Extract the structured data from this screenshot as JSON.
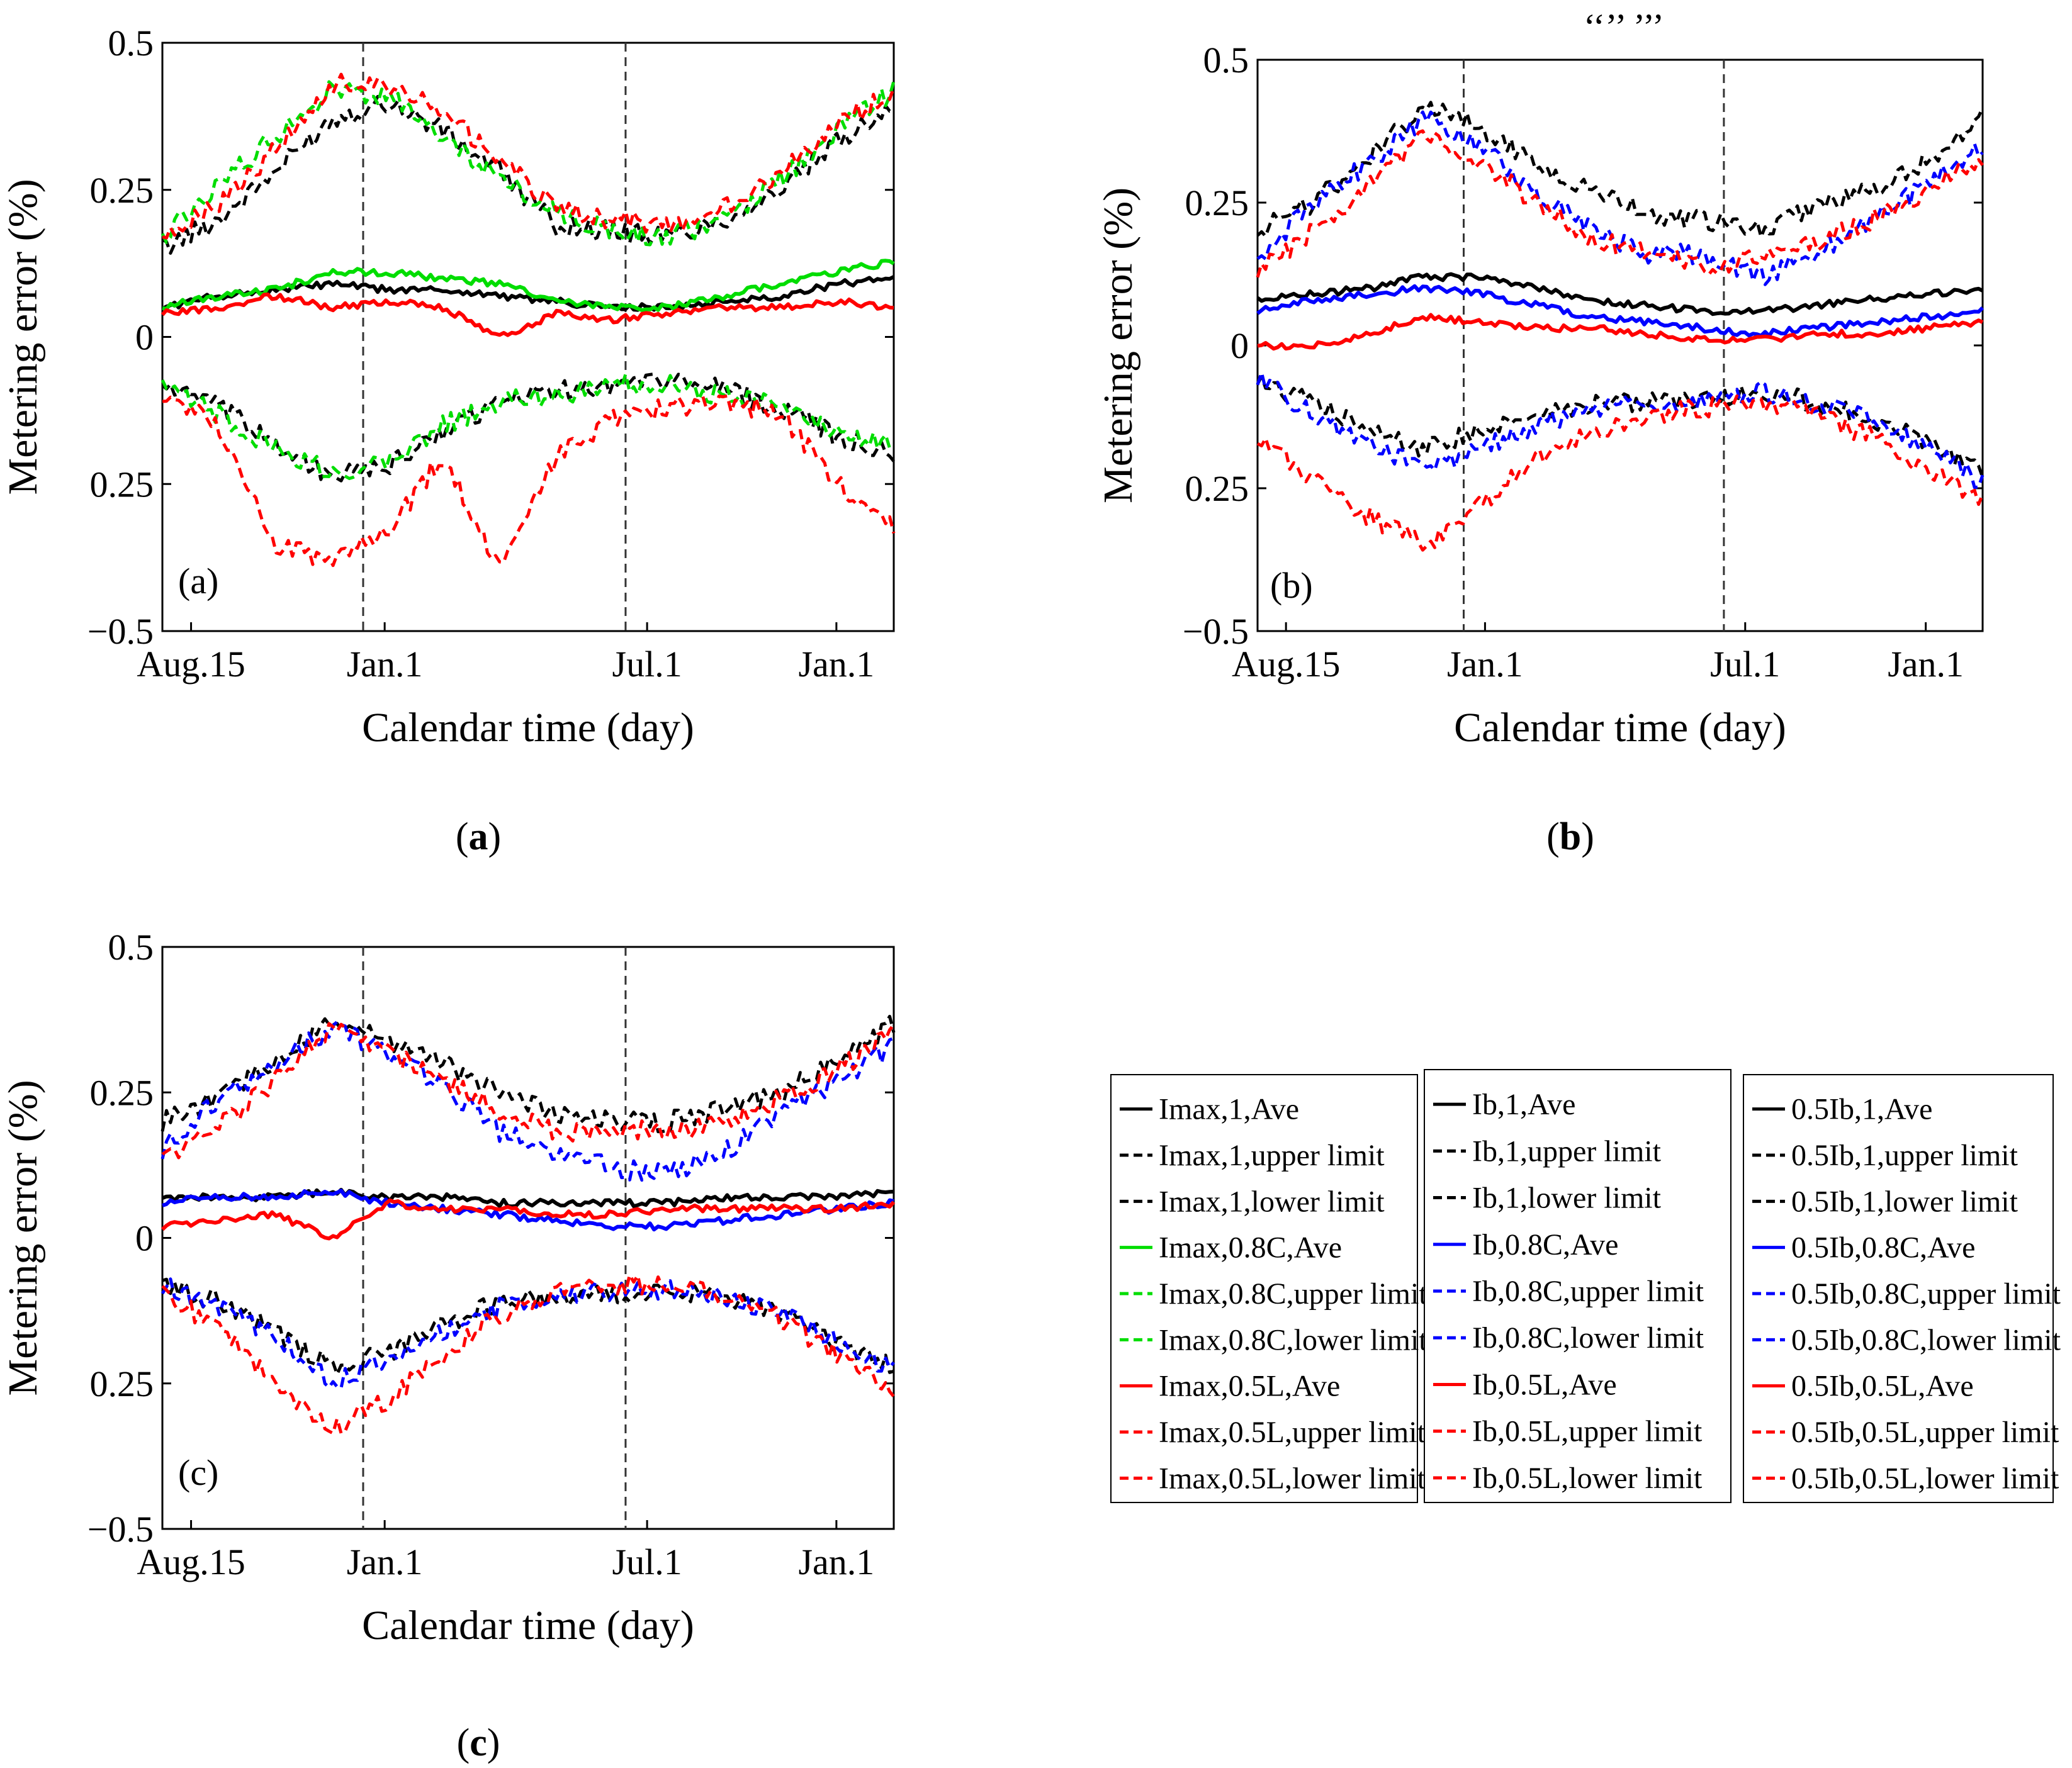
{
  "figure": {
    "captions": [
      "a",
      "b",
      "c"
    ],
    "caption_format": "(X)"
  },
  "chart_data": [
    {
      "type": "line",
      "panel_label": "(a)",
      "xlabel": "Calendar time  (day)",
      "ylabel": "Metering error (%)",
      "xticks": [
        "Aug.15",
        "Jan.1",
        "Jul.1",
        "Jan.1"
      ],
      "yticks": [
        "0.5",
        "0.25",
        "0",
        "0.25",
        "−0.5"
      ],
      "ylim": [
        -0.5,
        0.5
      ],
      "xlim": [
        0,
        510
      ],
      "vlines_x": [
        140,
        323
      ],
      "series": [
        {
          "name": "Imax,1,upper limit",
          "color": "#000000",
          "dash": true,
          "values": [
            0.15,
            0.2,
            0.28,
            0.37,
            0.4,
            0.35,
            0.28,
            0.19,
            0.18,
            0.17,
            0.2,
            0.25,
            0.33,
            0.4
          ]
        },
        {
          "name": "Imax,1,Ave",
          "color": "#000000",
          "dash": false,
          "values": [
            0.05,
            0.07,
            0.08,
            0.09,
            0.08,
            0.08,
            0.07,
            0.06,
            0.05,
            0.05,
            0.06,
            0.07,
            0.09,
            0.1
          ]
        },
        {
          "name": "Imax,1,lower limit",
          "color": "#000000",
          "dash": true,
          "values": [
            -0.08,
            -0.12,
            -0.18,
            -0.24,
            -0.22,
            -0.16,
            -0.11,
            -0.09,
            -0.08,
            -0.07,
            -0.09,
            -0.12,
            -0.17,
            -0.2
          ]
        },
        {
          "name": "Imax,0.8C,upper limit",
          "color": "#00dd00",
          "dash": true,
          "values": [
            0.17,
            0.26,
            0.34,
            0.42,
            0.41,
            0.34,
            0.27,
            0.21,
            0.18,
            0.17,
            0.2,
            0.27,
            0.35,
            0.42
          ]
        },
        {
          "name": "Imax,0.8C,Ave",
          "color": "#00dd00",
          "dash": false,
          "values": [
            0.05,
            0.07,
            0.08,
            0.11,
            0.11,
            0.1,
            0.09,
            0.06,
            0.05,
            0.05,
            0.07,
            0.09,
            0.11,
            0.13
          ]
        },
        {
          "name": "Imax,0.8C,lower limit",
          "color": "#00dd00",
          "dash": true,
          "values": [
            -0.09,
            -0.13,
            -0.19,
            -0.23,
            -0.21,
            -0.15,
            -0.11,
            -0.1,
            -0.08,
            -0.08,
            -0.1,
            -0.12,
            -0.16,
            -0.18
          ]
        },
        {
          "name": "Imax,0.5L,upper limit",
          "color": "#ff0000",
          "dash": true,
          "values": [
            0.18,
            0.22,
            0.32,
            0.43,
            0.43,
            0.38,
            0.3,
            0.22,
            0.2,
            0.19,
            0.22,
            0.28,
            0.36,
            0.42
          ]
        },
        {
          "name": "Imax,0.5L,Ave",
          "color": "#ff0000",
          "dash": false,
          "values": [
            0.04,
            0.05,
            0.07,
            0.05,
            0.06,
            0.05,
            0.0,
            0.04,
            0.03,
            0.04,
            0.05,
            0.05,
            0.06,
            0.05
          ]
        },
        {
          "name": "Imax,0.5L,lower limit",
          "color": "#ff0000",
          "dash": true,
          "values": [
            -0.1,
            -0.15,
            -0.35,
            -0.38,
            -0.33,
            -0.2,
            -0.4,
            -0.2,
            -0.14,
            -0.12,
            -0.11,
            -0.13,
            -0.25,
            -0.32
          ]
        }
      ]
    },
    {
      "type": "line",
      "panel_label": "(b)",
      "title": "‘‘’’ ’’’",
      "xlabel": "Calendar time  (day)",
      "ylabel": "Metering error (%)",
      "xticks": [
        "Aug.15",
        "Jan.1",
        "Jul.1",
        "Jan.1"
      ],
      "yticks": [
        "0.5",
        "0.25",
        "0",
        "0.25",
        "−0.5"
      ],
      "ylim": [
        -0.5,
        0.5
      ],
      "xlim": [
        0,
        510
      ],
      "vlines_x": [
        145,
        328
      ],
      "series": [
        {
          "name": "Ib,1,upper limit",
          "color": "#000000",
          "dash": true,
          "values": [
            0.2,
            0.25,
            0.33,
            0.42,
            0.38,
            0.32,
            0.27,
            0.23,
            0.22,
            0.2,
            0.24,
            0.27,
            0.32,
            0.4
          ]
        },
        {
          "name": "Ib,1,Ave",
          "color": "#000000",
          "dash": false,
          "values": [
            0.08,
            0.09,
            0.1,
            0.12,
            0.12,
            0.1,
            0.08,
            0.07,
            0.06,
            0.06,
            0.07,
            0.08,
            0.09,
            0.1
          ]
        },
        {
          "name": "Ib,1,lower limit",
          "color": "#000000",
          "dash": true,
          "values": [
            -0.06,
            -0.1,
            -0.15,
            -0.18,
            -0.15,
            -0.12,
            -0.1,
            -0.1,
            -0.1,
            -0.08,
            -0.1,
            -0.13,
            -0.17,
            -0.22
          ]
        },
        {
          "name": "Ib,0.8C,upper limit",
          "color": "#0000ff",
          "dash": true,
          "values": [
            0.15,
            0.25,
            0.32,
            0.4,
            0.35,
            0.27,
            0.2,
            0.16,
            0.16,
            0.12,
            0.16,
            0.22,
            0.28,
            0.35
          ]
        },
        {
          "name": "Ib,0.8C,Ave",
          "color": "#0000ff",
          "dash": false,
          "values": [
            0.06,
            0.08,
            0.09,
            0.1,
            0.09,
            0.07,
            0.05,
            0.04,
            0.03,
            0.02,
            0.03,
            0.04,
            0.05,
            0.06
          ]
        },
        {
          "name": "Ib,0.8C,lower limit",
          "color": "#0000ff",
          "dash": true,
          "values": [
            -0.06,
            -0.12,
            -0.17,
            -0.22,
            -0.18,
            -0.14,
            -0.11,
            -0.1,
            -0.1,
            -0.08,
            -0.1,
            -0.13,
            -0.18,
            -0.24
          ]
        },
        {
          "name": "Ib,0.5L,upper limit",
          "color": "#ff0000",
          "dash": true,
          "values": [
            0.13,
            0.2,
            0.28,
            0.37,
            0.32,
            0.25,
            0.19,
            0.16,
            0.14,
            0.15,
            0.18,
            0.22,
            0.27,
            0.33
          ]
        },
        {
          "name": "Ib,0.5L,Ave",
          "color": "#ff0000",
          "dash": false,
          "values": [
            0.0,
            0.0,
            0.02,
            0.05,
            0.04,
            0.03,
            0.03,
            0.02,
            0.01,
            0.01,
            0.02,
            0.02,
            0.03,
            0.04
          ]
        },
        {
          "name": "Ib,0.5L,lower limit",
          "color": "#ff0000",
          "dash": true,
          "values": [
            -0.17,
            -0.23,
            -0.3,
            -0.35,
            -0.28,
            -0.2,
            -0.15,
            -0.12,
            -0.11,
            -0.1,
            -0.12,
            -0.16,
            -0.22,
            -0.27
          ]
        }
      ]
    },
    {
      "type": "line",
      "panel_label": "(c)",
      "xlabel": "Calendar time  (day)",
      "ylabel": "Metering error (%)",
      "xticks": [
        "Aug.15",
        "Jan.1",
        "Jul.1",
        "Jan.1"
      ],
      "yticks": [
        "0.5",
        "0.25",
        "0",
        "0.25",
        "−0.5"
      ],
      "ylim": [
        -0.5,
        0.5
      ],
      "xlim": [
        0,
        510
      ],
      "vlines_x": [
        140,
        323
      ],
      "series": [
        {
          "name": "0.5Ib,1,upper limit",
          "color": "#000000",
          "dash": true,
          "values": [
            0.2,
            0.24,
            0.3,
            0.37,
            0.34,
            0.3,
            0.25,
            0.21,
            0.2,
            0.2,
            0.22,
            0.25,
            0.3,
            0.37
          ]
        },
        {
          "name": "0.5Ib,1,Ave",
          "color": "#000000",
          "dash": false,
          "values": [
            0.07,
            0.07,
            0.07,
            0.08,
            0.07,
            0.07,
            0.06,
            0.06,
            0.06,
            0.06,
            0.07,
            0.07,
            0.07,
            0.08
          ]
        },
        {
          "name": "0.5Ib,1,lower limit",
          "color": "#000000",
          "dash": true,
          "values": [
            -0.08,
            -0.11,
            -0.16,
            -0.22,
            -0.2,
            -0.15,
            -0.11,
            -0.1,
            -0.1,
            -0.09,
            -0.1,
            -0.13,
            -0.18,
            -0.22
          ]
        },
        {
          "name": "0.5Ib,0.8C,upper limit",
          "color": "#0000ff",
          "dash": true,
          "values": [
            0.15,
            0.24,
            0.3,
            0.36,
            0.32,
            0.26,
            0.18,
            0.15,
            0.12,
            0.11,
            0.15,
            0.21,
            0.27,
            0.33
          ]
        },
        {
          "name": "0.5Ib,0.8C,Ave",
          "color": "#0000ff",
          "dash": false,
          "values": [
            0.06,
            0.07,
            0.07,
            0.08,
            0.06,
            0.05,
            0.04,
            0.03,
            0.02,
            0.02,
            0.03,
            0.04,
            0.05,
            0.06
          ]
        },
        {
          "name": "0.5Ib,0.8C,lower limit",
          "color": "#0000ff",
          "dash": true,
          "values": [
            -0.08,
            -0.12,
            -0.17,
            -0.25,
            -0.21,
            -0.16,
            -0.12,
            -0.1,
            -0.09,
            -0.09,
            -0.1,
            -0.13,
            -0.18,
            -0.23
          ]
        },
        {
          "name": "0.5Ib,0.5L,upper limit",
          "color": "#ff0000",
          "dash": true,
          "values": [
            0.13,
            0.19,
            0.27,
            0.36,
            0.32,
            0.27,
            0.22,
            0.18,
            0.19,
            0.18,
            0.2,
            0.24,
            0.29,
            0.35
          ]
        },
        {
          "name": "0.5Ib,0.5L,Ave",
          "color": "#ff0000",
          "dash": false,
          "values": [
            0.02,
            0.03,
            0.04,
            0.0,
            0.06,
            0.05,
            0.05,
            0.04,
            0.04,
            0.05,
            0.05,
            0.05,
            0.05,
            0.06
          ]
        },
        {
          "name": "0.5Ib,0.5L,lower limit",
          "color": "#ff0000",
          "dash": true,
          "values": [
            -0.1,
            -0.15,
            -0.25,
            -0.33,
            -0.28,
            -0.2,
            -0.13,
            -0.09,
            -0.08,
            -0.08,
            -0.1,
            -0.14,
            -0.2,
            -0.26
          ]
        }
      ]
    }
  ],
  "legends": [
    {
      "entries": [
        {
          "label": "Imax,1,Ave",
          "color": "#000000",
          "dash": false
        },
        {
          "label": "Imax,1,upper limit",
          "color": "#000000",
          "dash": true
        },
        {
          "label": "Imax,1,lower limit",
          "color": "#000000",
          "dash": true
        },
        {
          "label": "Imax,0.8C,Ave",
          "color": "#00dd00",
          "dash": false
        },
        {
          "label": "Imax,0.8C,upper limit",
          "color": "#00dd00",
          "dash": true
        },
        {
          "label": "Imax,0.8C,lower limit",
          "color": "#00dd00",
          "dash": true
        },
        {
          "label": "Imax,0.5L,Ave",
          "color": "#ff0000",
          "dash": false
        },
        {
          "label": "Imax,0.5L,upper limit",
          "color": "#ff0000",
          "dash": true
        },
        {
          "label": "Imax,0.5L,lower limit",
          "color": "#ff0000",
          "dash": true
        }
      ]
    },
    {
      "entries": [
        {
          "label": "Ib,1,Ave",
          "color": "#000000",
          "dash": false
        },
        {
          "label": "Ib,1,upper limit",
          "color": "#000000",
          "dash": true
        },
        {
          "label": "Ib,1,lower limit",
          "color": "#000000",
          "dash": true
        },
        {
          "label": "Ib,0.8C,Ave",
          "color": "#0000ff",
          "dash": false
        },
        {
          "label": "Ib,0.8C,upper limit",
          "color": "#0000ff",
          "dash": true
        },
        {
          "label": "Ib,0.8C,lower limit",
          "color": "#0000ff",
          "dash": true
        },
        {
          "label": "Ib,0.5L,Ave",
          "color": "#ff0000",
          "dash": false
        },
        {
          "label": "Ib,0.5L,upper limit",
          "color": "#ff0000",
          "dash": true
        },
        {
          "label": "Ib,0.5L,lower limit",
          "color": "#ff0000",
          "dash": true
        }
      ]
    },
    {
      "entries": [
        {
          "label": "0.5Ib,1,Ave",
          "color": "#000000",
          "dash": false
        },
        {
          "label": "0.5Ib,1,upper limit",
          "color": "#000000",
          "dash": true
        },
        {
          "label": "0.5Ib,1,lower limit",
          "color": "#000000",
          "dash": true
        },
        {
          "label": "0.5Ib,0.8C,Ave",
          "color": "#0000ff",
          "dash": false
        },
        {
          "label": "0.5Ib,0.8C,upper limit",
          "color": "#0000ff",
          "dash": true
        },
        {
          "label": "0.5Ib,0.8C,lower limit",
          "color": "#0000ff",
          "dash": true
        },
        {
          "label": "0.5Ib,0.5L,Ave",
          "color": "#ff0000",
          "dash": false
        },
        {
          "label": "0.5Ib,0.5L,upper limit",
          "color": "#ff0000",
          "dash": true
        },
        {
          "label": "0.5Ib,0.5L,lower limit",
          "color": "#ff0000",
          "dash": true
        }
      ]
    }
  ]
}
